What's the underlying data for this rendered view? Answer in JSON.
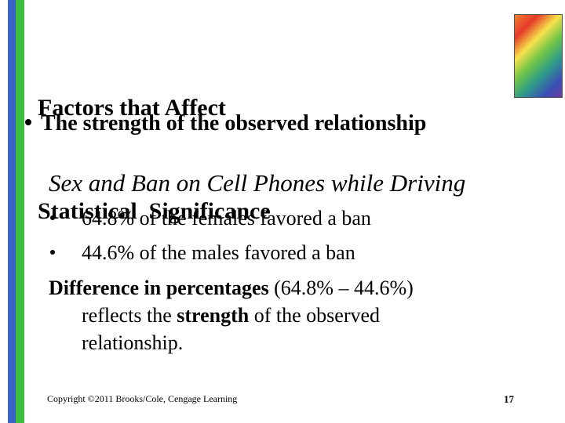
{
  "header": {
    "title_lines": [
      "Factors that Affect",
      "Statistical  Significance"
    ]
  },
  "body": {
    "main_bullet": "The strength of the observed relationship",
    "subtitle": "Sex and Ban on Cell Phones while Driving",
    "items": [
      "64.8% of the females favored a ban",
      "44.6% of the males favored a ban"
    ],
    "paragraph": [
      {
        "text": "Difference in percentages",
        "bold": true
      },
      {
        "text": " (64.8% – 44.6%) reflects the ",
        "bold": false
      },
      {
        "text": "strength",
        "bold": true
      },
      {
        "text": " of the observed relationship.",
        "bold": false
      }
    ]
  },
  "footer": {
    "copyright": "Copyright ©2011 Brooks/Cole, Cengage Learning",
    "page_number": "17"
  }
}
